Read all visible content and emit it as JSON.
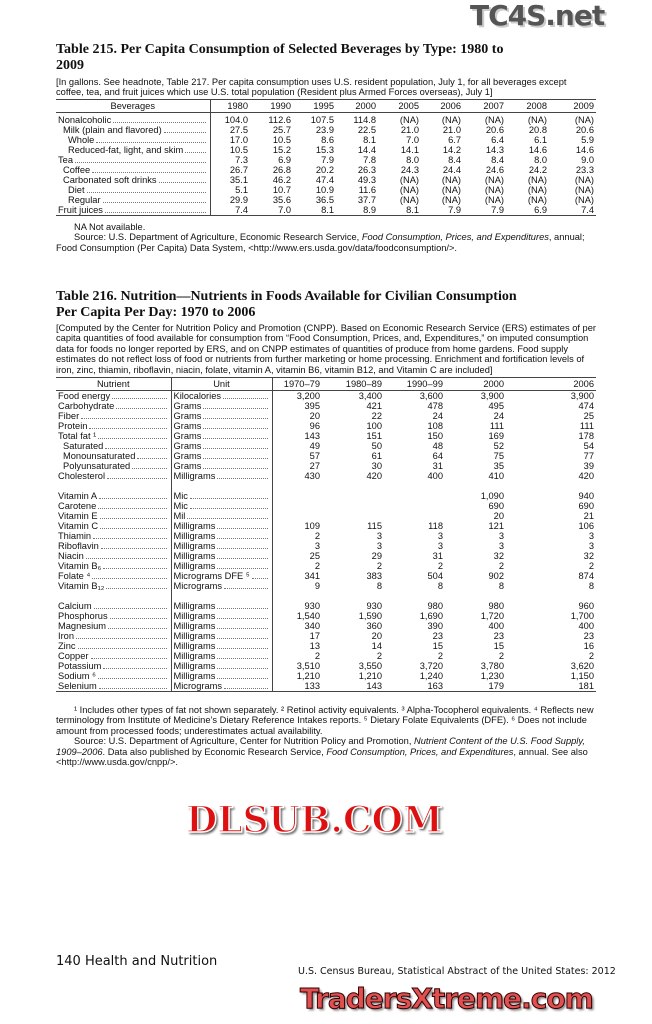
{
  "t215": {
    "title": "Table 215. Per Capita Consumption of Selected Beverages by Type: 1980 to 2009",
    "headnote": "[In gallons. See headnote, Table 217. Per capita consumption uses U.S. resident population, July 1, for all beverages except coffee, tea, and fruit juices which use U.S. total population (Resident plus Armed Forces overseas), July 1]",
    "columns": [
      "Beverages",
      "1980",
      "1990",
      "1995",
      "2000",
      "2005",
      "2006",
      "2007",
      "2008",
      "2009"
    ],
    "rows": [
      {
        "label": "Nonalcoholic",
        "indent": 0,
        "values": [
          "104.0",
          "112.6",
          "107.5",
          "114.8",
          "(NA)",
          "(NA)",
          "(NA)",
          "(NA)",
          "(NA)"
        ]
      },
      {
        "label": "Milk (plain and flavored)",
        "indent": 1,
        "values": [
          "27.5",
          "25.7",
          "23.9",
          "22.5",
          "21.0",
          "21.0",
          "20.6",
          "20.8",
          "20.6"
        ]
      },
      {
        "label": "Whole",
        "indent": 2,
        "values": [
          "17.0",
          "10.5",
          "8.6",
          "8.1",
          "7.0",
          "6.7",
          "6.4",
          "6.1",
          "5.9"
        ]
      },
      {
        "label": "Reduced-fat, light, and skim",
        "indent": 2,
        "values": [
          "10.5",
          "15.2",
          "15.3",
          "14.4",
          "14.1",
          "14.2",
          "14.3",
          "14.6",
          "14.6"
        ]
      },
      {
        "label": "Tea",
        "indent": 0,
        "values": [
          "7.3",
          "6.9",
          "7.9",
          "7.8",
          "8.0",
          "8.4",
          "8.4",
          "8.0",
          "9.0"
        ]
      },
      {
        "label": "Coffee",
        "indent": 1,
        "values": [
          "26.7",
          "26.8",
          "20.2",
          "26.3",
          "24.3",
          "24.4",
          "24.6",
          "24.2",
          "23.3"
        ]
      },
      {
        "label": "Carbonated soft drinks",
        "indent": 1,
        "values": [
          "35.1",
          "46.2",
          "47.4",
          "49.3",
          "(NA)",
          "(NA)",
          "(NA)",
          "(NA)",
          "(NA)"
        ]
      },
      {
        "label": "Diet",
        "indent": 2,
        "values": [
          "5.1",
          "10.7",
          "10.9",
          "11.6",
          "(NA)",
          "(NA)",
          "(NA)",
          "(NA)",
          "(NA)"
        ]
      },
      {
        "label": "Regular",
        "indent": 2,
        "values": [
          "29.9",
          "35.6",
          "36.5",
          "37.7",
          "(NA)",
          "(NA)",
          "(NA)",
          "(NA)",
          "(NA)"
        ]
      },
      {
        "label": "Fruit juices",
        "indent": 0,
        "values": [
          "7.4",
          "7.0",
          "8.1",
          "8.9",
          "8.1",
          "7.9",
          "7.9",
          "6.9",
          "7.4"
        ]
      }
    ],
    "na_note": "NA Not available.",
    "source": "Source: U.S. Department of Agriculture, Economic Research Service, ",
    "source_italic": "Food Consumption, Prices, and Expenditures",
    "source_end": ", annual; Food Consumption (Per Capita) Data System, <http://www.ers.usda.gov/data/foodconsumption/>."
  },
  "t216": {
    "title_line1": "Table 216. Nutrition—Nutrients in Foods Available for Civilian Consumption",
    "title_line2": "Per Capita Per Day: 1970 to 2006",
    "headnote": "[Computed by the Center for Nutrition Policy and Promotion (CNPP). Based on Economic Research Service (ERS) estimates of per capita quantities of food available for consumption from “Food Consumption, Prices, and, Expenditures,” on imputed consumption data for foods no longer reported by ERS, and on CNPP estimates of quantities of produce from home gardens. Food supply estimates do not reflect loss of food or nutrients from further marketing or home processing. Enrichment and fortification levels of iron, zinc, thiamin, riboflavin, niacin, folate, vitamin A, vitamin B6, vitamin B12, and Vitamin C are included]",
    "columns": [
      "Nutrient",
      "Unit",
      "1970–79",
      "1980–89",
      "1990–99",
      "2000",
      "2006"
    ],
    "groups": [
      [
        {
          "label": "Food energy",
          "unit": "Kilocalories",
          "values": [
            "3,200",
            "3,400",
            "3,600",
            "3,900",
            "3,900"
          ]
        },
        {
          "label": "Carbohydrate",
          "unit": "Grams",
          "values": [
            "395",
            "421",
            "478",
            "495",
            "474"
          ]
        },
        {
          "label": "Fiber",
          "unit": "Grams",
          "values": [
            "20",
            "22",
            "24",
            "24",
            "25"
          ]
        },
        {
          "label": "Protein",
          "unit": "Grams",
          "values": [
            "96",
            "100",
            "108",
            "111",
            "111"
          ]
        },
        {
          "label": "Total fat ¹",
          "unit": "Grams",
          "values": [
            "143",
            "151",
            "150",
            "169",
            "178"
          ]
        },
        {
          "label": "Saturated",
          "indent": 1,
          "unit": "Grams",
          "values": [
            "49",
            "50",
            "48",
            "52",
            "54"
          ]
        },
        {
          "label": "Monounsaturated",
          "indent": 1,
          "unit": "Grams",
          "values": [
            "57",
            "61",
            "64",
            "75",
            "77"
          ]
        },
        {
          "label": "Polyunsaturated",
          "indent": 1,
          "unit": "Grams",
          "values": [
            "27",
            "30",
            "31",
            "35",
            "39"
          ]
        },
        {
          "label": "Cholesterol",
          "unit": "Milligrams",
          "values": [
            "430",
            "420",
            "400",
            "410",
            "420"
          ]
        }
      ],
      [
        {
          "label": "Vitamin A",
          "unit": "Mic",
          "values": [
            "",
            "",
            "",
            "1,090",
            "940"
          ]
        },
        {
          "label": "Carotene",
          "unit": "Mic",
          "values": [
            "",
            "",
            "",
            "690",
            "690"
          ]
        },
        {
          "label": "Vitamin E",
          "unit": "Mil",
          "values": [
            "",
            "",
            "",
            "20",
            "21"
          ]
        },
        {
          "label": "Vitamin C",
          "unit": "Milligrams",
          "values": [
            "109",
            "115",
            "118",
            "121",
            "106"
          ]
        },
        {
          "label": "Thiamin",
          "unit": "Milligrams",
          "values": [
            "2",
            "3",
            "3",
            "3",
            "3"
          ]
        },
        {
          "label": "Riboflavin",
          "unit": "Milligrams",
          "values": [
            "3",
            "3",
            "3",
            "3",
            "3"
          ]
        },
        {
          "label": "Niacin",
          "unit": "Milligrams",
          "values": [
            "25",
            "29",
            "31",
            "32",
            "32"
          ]
        },
        {
          "label": "Vitamin B₆",
          "unit": "Milligrams",
          "values": [
            "2",
            "2",
            "2",
            "2",
            "2"
          ]
        },
        {
          "label": "Folate ⁴",
          "unit": "Micrograms DFE ⁵",
          "values": [
            "341",
            "383",
            "504",
            "902",
            "874"
          ]
        },
        {
          "label": "Vitamin B₁₂",
          "unit": "Micrograms",
          "values": [
            "9",
            "8",
            "8",
            "8",
            "8"
          ]
        }
      ],
      [
        {
          "label": "Calcium",
          "unit": "Milligrams",
          "values": [
            "930",
            "930",
            "980",
            "980",
            "960"
          ]
        },
        {
          "label": "Phosphorus",
          "unit": "Milligrams",
          "values": [
            "1,540",
            "1,590",
            "1,690",
            "1,720",
            "1,700"
          ]
        },
        {
          "label": "Magnesium",
          "unit": "Milligrams",
          "values": [
            "340",
            "360",
            "390",
            "400",
            "400"
          ]
        },
        {
          "label": "Iron",
          "unit": "Milligrams",
          "values": [
            "17",
            "20",
            "23",
            "23",
            "23"
          ]
        },
        {
          "label": "Zinc",
          "unit": "Milligrams",
          "values": [
            "13",
            "14",
            "15",
            "15",
            "16"
          ]
        },
        {
          "label": "Copper",
          "unit": "Milligrams",
          "values": [
            "2",
            "2",
            "2",
            "2",
            "2"
          ]
        },
        {
          "label": "Potassium",
          "unit": "Milligrams",
          "values": [
            "3,510",
            "3,550",
            "3,720",
            "3,780",
            "3,620"
          ]
        },
        {
          "label": "Sodium ⁶",
          "unit": "Milligrams",
          "values": [
            "1,210",
            "1,210",
            "1,240",
            "1,230",
            "1,150"
          ]
        },
        {
          "label": "Selenium",
          "unit": "Micrograms",
          "values": [
            "133",
            "143",
            "163",
            "179",
            "181"
          ]
        }
      ]
    ],
    "footnotes": "¹ Includes other types of fat not shown separately. ² Retinol activity equivalents. ³ Alpha-Tocopherol equivalents. ⁴ Reflects new terminology from Institute of Medicine’s Dietary Reference Intakes reports. ⁵ Dietary Folate Equivalents (DFE). ⁶ Does not include amount from processed foods; underestimates actual availability.",
    "source": "Source: U.S. Department of Agriculture, Center for Nutrition Policy and Promotion, ",
    "source_italic": "Nutrient Content of the U.S. Food Supply, 1909–2006",
    "source_mid": ". Data also published by Economic Research Service, ",
    "source_italic2": "Food Consumption, Prices, and Expenditures",
    "source_end": ", annual. See also <http://www.usda.gov/cnpp/>."
  },
  "footer": {
    "page": "140  Health and Nutrition",
    "publication": "U.S. Census Bureau, Statistical Abstract of the United States: 2012"
  },
  "watermarks": {
    "top": "TC4S.net",
    "middle": "DLSUB.COM",
    "bottom": "TradersXtreme.com"
  }
}
